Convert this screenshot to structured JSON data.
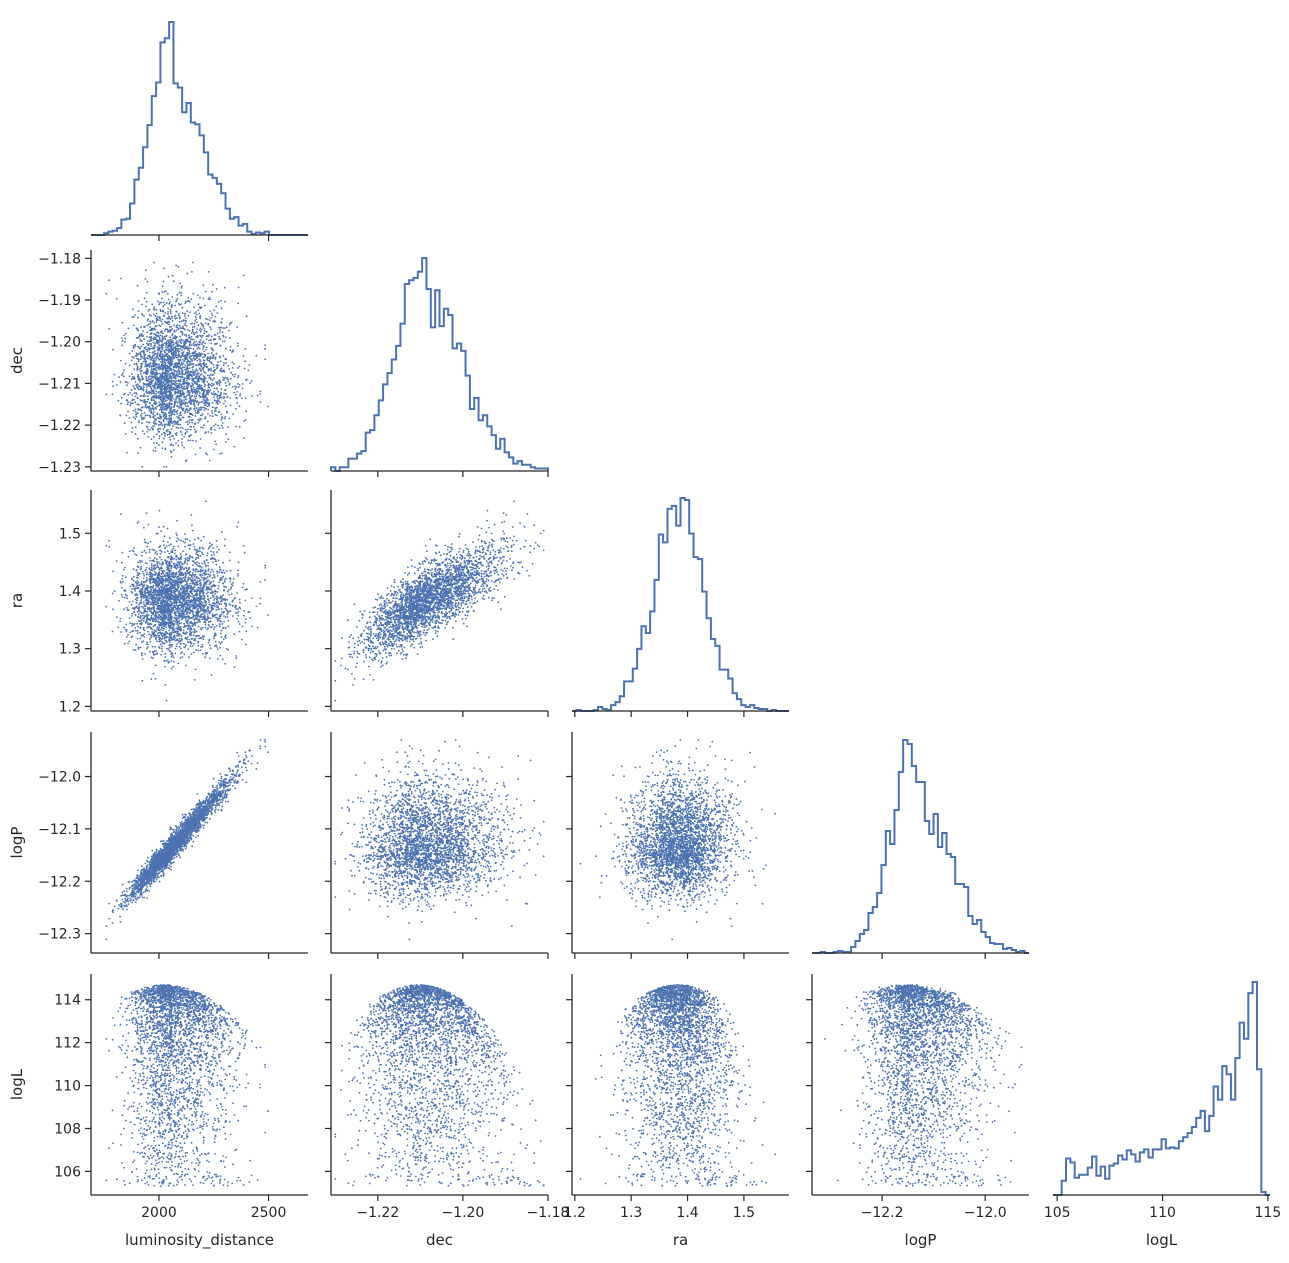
{
  "chart_data": {
    "type": "corner-pairplot",
    "variables": [
      "luminosity_distance",
      "dec",
      "ra",
      "logP",
      "logL"
    ],
    "axis_labels": [
      "luminosity_distance",
      "dec",
      "ra",
      "logP",
      "logL"
    ],
    "color": "#4c72b0",
    "grid": false,
    "xlims": [
      [
        1690,
        2680
      ],
      [
        -1.231,
        -1.18
      ],
      [
        1.195,
        1.58
      ],
      [
        -12.336,
        -11.915
      ],
      [
        104.8,
        115.1
      ]
    ],
    "ylims": [
      null,
      [
        -1.231,
        -1.178
      ],
      [
        1.192,
        1.575
      ],
      [
        -12.337,
        -11.915
      ],
      [
        104.9,
        115.2
      ]
    ],
    "ticks": [
      {
        "values": [
          2000,
          2500
        ],
        "labels": [
          "2000",
          "2500"
        ]
      },
      {
        "values": [
          -1.22,
          -1.2,
          -1.18
        ],
        "labels": [
          "−1.22",
          "−1.20",
          "−1.18"
        ]
      },
      {
        "values": [
          1.2,
          1.3,
          1.4,
          1.5
        ],
        "labels": [
          "1.2",
          "1.3",
          "1.4",
          "1.5"
        ]
      },
      {
        "values": [
          -12.2,
          -12.0
        ],
        "labels": [
          "−12.2",
          "−12.0"
        ]
      },
      {
        "values": [
          105,
          110,
          115
        ],
        "labels": [
          "105",
          "110",
          "115"
        ]
      }
    ],
    "yticks": [
      null,
      {
        "values": [
          -1.23,
          -1.22,
          -1.21,
          -1.2,
          -1.19,
          -1.18
        ],
        "labels": [
          "−1.23",
          "−1.22",
          "−1.21",
          "−1.20",
          "−1.19",
          "−1.18"
        ]
      },
      {
        "values": [
          1.2,
          1.3,
          1.4,
          1.5
        ],
        "labels": [
          "1.2",
          "1.3",
          "1.4",
          "1.5"
        ]
      },
      {
        "values": [
          -12.3,
          -12.2,
          -12.1,
          -12.0
        ],
        "labels": [
          "−12.3",
          "−12.2",
          "−12.1",
          "−12.0"
        ]
      },
      {
        "values": [
          106,
          108,
          110,
          112,
          114
        ],
        "labels": [
          "106",
          "108",
          "110",
          "112",
          "114"
        ]
      }
    ],
    "marginals": {
      "mean": [
        2060,
        -1.2085,
        1.385,
        -12.135,
        null
      ],
      "sd": [
        110,
        0.0075,
        0.045,
        0.05,
        null
      ],
      "range": [
        [
          1760,
          2660
        ],
        [
          -1.23,
          -1.181
        ],
        [
          1.21,
          1.565
        ],
        [
          -12.32,
          -11.93
        ],
        [
          105.3,
          114.7
        ]
      ]
    },
    "correlations": {
      "dec-luminosity_distance": 0.0,
      "ra-luminosity_distance": 0.0,
      "ra-dec": 0.75,
      "logP-luminosity_distance": 0.97,
      "logP-dec": 0.1,
      "logP-ra": 0.2
    },
    "logL_peak": 114.7,
    "n_samples": 3000,
    "histogram_bins": 50
  }
}
